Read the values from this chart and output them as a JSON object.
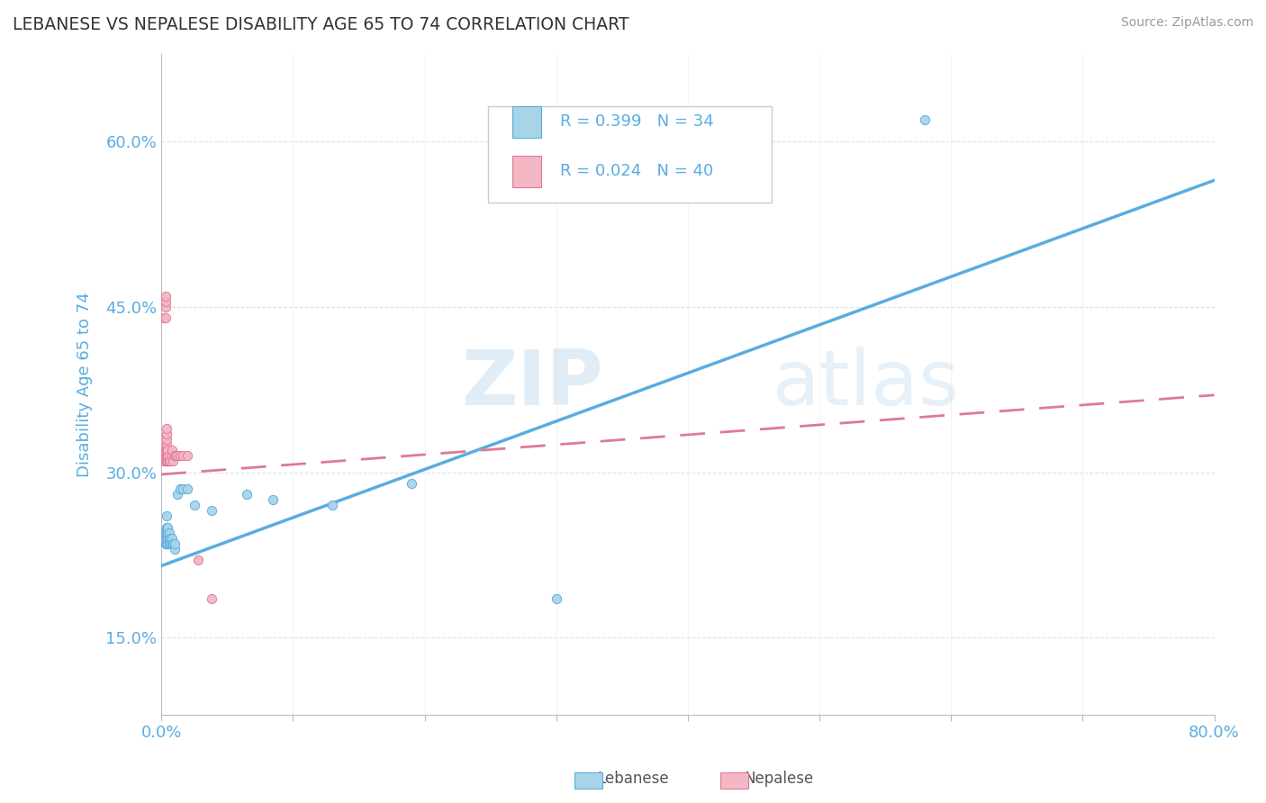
{
  "title": "LEBANESE VS NEPALESE DISABILITY AGE 65 TO 74 CORRELATION CHART",
  "source": "Source: ZipAtlas.com",
  "ylabel": "Disability Age 65 to 74",
  "xlim": [
    0.0,
    0.8
  ],
  "ylim": [
    0.08,
    0.68
  ],
  "xticks": [
    0.0,
    0.1,
    0.2,
    0.3,
    0.4,
    0.5,
    0.6,
    0.7,
    0.8
  ],
  "yticks": [
    0.15,
    0.3,
    0.45,
    0.6
  ],
  "yticklabels": [
    "15.0%",
    "30.0%",
    "45.0%",
    "60.0%"
  ],
  "color_lebanese": "#a8d4e8",
  "color_nepalese": "#f4b8c4",
  "color_lebanese_line": "#5aace0",
  "color_nepalese_line": "#e07898",
  "watermark_zip": "ZIP",
  "watermark_atlas": "atlas",
  "lebanese_x": [
    0.002,
    0.003,
    0.003,
    0.004,
    0.004,
    0.004,
    0.004,
    0.004,
    0.005,
    0.005,
    0.005,
    0.005,
    0.006,
    0.006,
    0.006,
    0.007,
    0.007,
    0.008,
    0.008,
    0.009,
    0.01,
    0.01,
    0.012,
    0.014,
    0.016,
    0.02,
    0.025,
    0.038,
    0.065,
    0.085,
    0.13,
    0.19,
    0.3,
    0.58
  ],
  "lebanese_y": [
    0.245,
    0.235,
    0.245,
    0.235,
    0.24,
    0.245,
    0.25,
    0.26,
    0.235,
    0.24,
    0.245,
    0.25,
    0.235,
    0.24,
    0.245,
    0.235,
    0.24,
    0.235,
    0.24,
    0.235,
    0.23,
    0.235,
    0.28,
    0.285,
    0.285,
    0.285,
    0.27,
    0.265,
    0.28,
    0.275,
    0.27,
    0.29,
    0.185,
    0.62
  ],
  "nepalese_x": [
    0.001,
    0.001,
    0.001,
    0.002,
    0.002,
    0.002,
    0.002,
    0.002,
    0.002,
    0.003,
    0.003,
    0.003,
    0.003,
    0.003,
    0.003,
    0.003,
    0.004,
    0.004,
    0.004,
    0.004,
    0.004,
    0.004,
    0.004,
    0.005,
    0.005,
    0.005,
    0.006,
    0.006,
    0.007,
    0.008,
    0.008,
    0.009,
    0.01,
    0.011,
    0.012,
    0.014,
    0.016,
    0.02,
    0.028,
    0.038
  ],
  "nepalese_y": [
    0.315,
    0.32,
    0.325,
    0.31,
    0.32,
    0.325,
    0.33,
    0.32,
    0.44,
    0.31,
    0.315,
    0.32,
    0.44,
    0.45,
    0.455,
    0.46,
    0.31,
    0.315,
    0.32,
    0.325,
    0.33,
    0.335,
    0.34,
    0.31,
    0.315,
    0.32,
    0.31,
    0.315,
    0.31,
    0.315,
    0.32,
    0.31,
    0.315,
    0.315,
    0.315,
    0.315,
    0.315,
    0.315,
    0.22,
    0.185
  ],
  "leb_trend_x0": 0.0,
  "leb_trend_y0": 0.215,
  "leb_trend_x1": 0.8,
  "leb_trend_y1": 0.565,
  "nep_trend_x0": 0.0,
  "nep_trend_y0": 0.298,
  "nep_trend_x1": 0.8,
  "nep_trend_y1": 0.37,
  "background_color": "#ffffff",
  "grid_color": "#e0e0e0",
  "title_color": "#333333",
  "axis_label_color": "#5aace0",
  "tick_label_color": "#5aace0",
  "r_value_color": "#5aace0"
}
